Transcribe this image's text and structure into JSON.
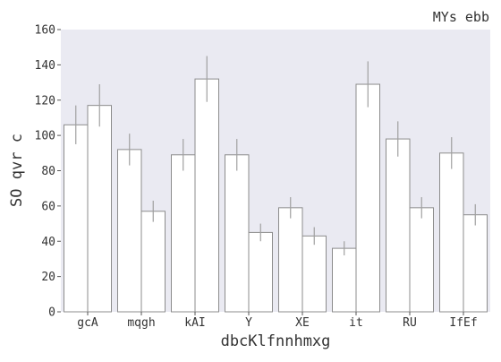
{
  "chart_data": {
    "type": "bar",
    "title": "MYs ebb",
    "xlabel": "dbcKlfnnhmxg",
    "ylabel": "SO qvr c",
    "ylim": [
      0,
      160
    ],
    "yticks": [
      "0",
      "20",
      "40",
      "60",
      "80",
      "100",
      "120",
      "140",
      "160"
    ],
    "grid": false,
    "background_color": "#eaeaf2",
    "bar_color": "#ffffff",
    "bar_edge_color": "#8c8c8c",
    "error_bar_color": "#a0a0a0",
    "categories": [
      "gcA",
      "mqgh",
      "kAI",
      "Y",
      "XE",
      "it",
      "RU",
      "IfEf"
    ],
    "series": [
      {
        "values": [
          106,
          92,
          89,
          89,
          59,
          36,
          98,
          90
        ],
        "errors": [
          11,
          9,
          9,
          9,
          6,
          4,
          10,
          9
        ]
      },
      {
        "values": [
          117,
          57,
          132,
          45,
          43,
          129,
          59,
          55
        ],
        "errors": [
          12,
          6,
          13,
          5,
          5,
          13,
          6,
          6
        ]
      }
    ]
  }
}
